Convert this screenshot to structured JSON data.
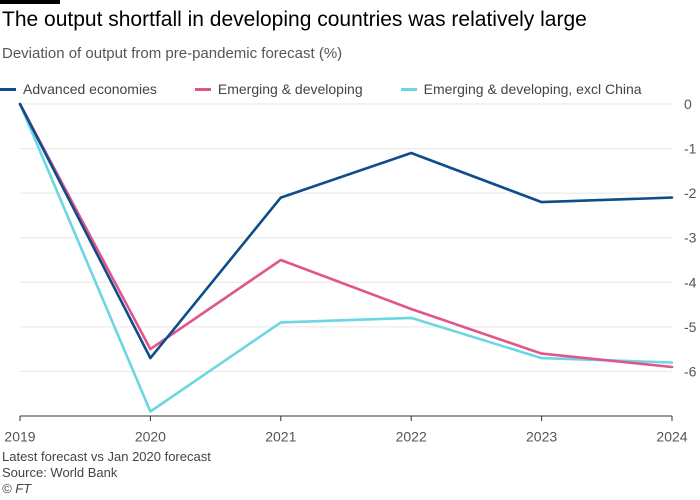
{
  "title": "The output shortfall in developing countries was relatively large",
  "subtitle": "Deviation of output from pre-pandemic forecast (%)",
  "footer": {
    "note": "Latest forecast vs Jan 2020 forecast",
    "source": "Source: World Bank",
    "copyright": "© FT"
  },
  "colors": {
    "advanced": "#0f4c8a",
    "emerging": "#e0568a",
    "excl_china": "#6dd6e3",
    "grid": "#e6e6e6",
    "baseline": "#333333"
  },
  "chart_data": {
    "type": "line",
    "x": [
      2019,
      2020,
      2021,
      2022,
      2023,
      2024
    ],
    "x_tick_labels": [
      "2019",
      "2020",
      "2021",
      "2022",
      "2023",
      "2024"
    ],
    "ylim": [
      -7,
      0
    ],
    "y_ticks": [
      0,
      -1,
      -2,
      -3,
      -4,
      -5,
      -6
    ],
    "y_tick_labels": [
      "0",
      "-1",
      "-2",
      "-3",
      "-4",
      "-5",
      "-6"
    ],
    "grid": true,
    "legend_position": "top-left",
    "series": [
      {
        "name": "Advanced economies",
        "color": "#0f4c8a",
        "values": [
          0,
          -5.7,
          -2.1,
          -1.1,
          -2.2,
          -2.1
        ]
      },
      {
        "name": "Emerging & developing",
        "color": "#e0568a",
        "values": [
          0,
          -5.5,
          -3.5,
          -4.6,
          -5.6,
          -5.9
        ]
      },
      {
        "name": "Emerging & developing, excl China",
        "color": "#6dd6e3",
        "values": [
          0,
          -6.9,
          -4.9,
          -4.8,
          -5.7,
          -5.8
        ]
      }
    ]
  }
}
